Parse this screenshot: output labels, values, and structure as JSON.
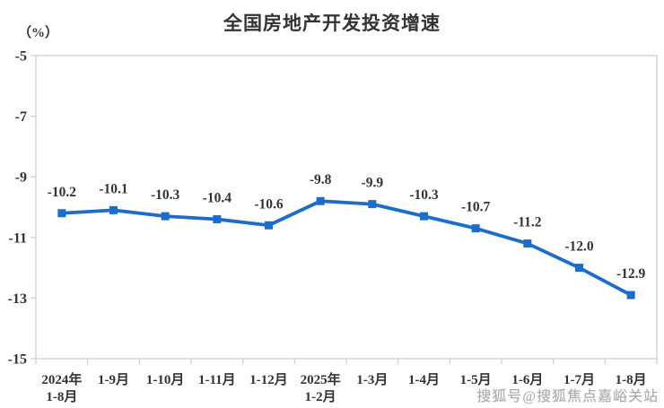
{
  "chart_data": {
    "type": "line",
    "title": "全国房地产开发投资增速",
    "unit_label": "（%）",
    "categories": [
      "2024年\n1-8月",
      "1-9月",
      "1-10月",
      "1-11月",
      "1-12月",
      "2025年\n1-2月",
      "1-3月",
      "1-4月",
      "1-5月",
      "1-6月",
      "1-7月",
      "1-8月"
    ],
    "values": [
      -10.2,
      -10.1,
      -10.3,
      -10.4,
      -10.6,
      -9.8,
      -9.9,
      -10.3,
      -10.7,
      -11.2,
      -12.0,
      -12.9
    ],
    "data_labels": [
      "-10.2",
      "-10.1",
      "-10.3",
      "-10.4",
      "-10.6",
      "-9.8",
      "-9.9",
      "-10.3",
      "-10.7",
      "-11.2",
      "-12.0",
      "-12.9"
    ],
    "y_ticks": [
      "-5",
      "-7",
      "-9",
      "-11",
      "-13",
      "-15"
    ],
    "ylim": [
      -15,
      -5
    ],
    "xlabel": "",
    "ylabel": "（%）",
    "grid": false,
    "legend": "none",
    "line_color": "#1b6dc9",
    "label_color": "#333333",
    "axis_color": "#cfcfcf"
  },
  "watermark": {
    "text": "搜狐号@搜狐焦点嘉峪关站"
  }
}
